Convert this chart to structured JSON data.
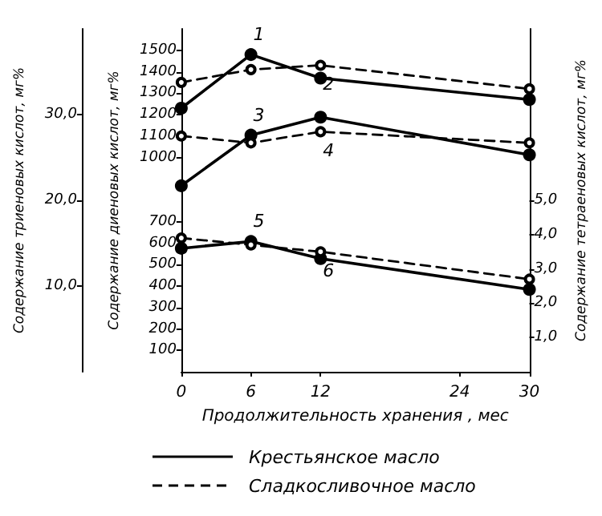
{
  "chart_data": {
    "type": "line",
    "xlabel": "Продолжительность хранения , мес",
    "ylabel": "Содержание диеновых кислот, мг%",
    "y2label": "Содержание триеновых кислот, мг%",
    "y3label": "Содержание тетраеновых кислот, мг%",
    "x": [
      0,
      6,
      12,
      30
    ],
    "xlim": [
      0,
      30
    ],
    "xticks": [
      0,
      6,
      12,
      24,
      30
    ],
    "ylim": [
      0,
      1600
    ],
    "yticks": [
      100,
      200,
      300,
      400,
      500,
      600,
      700,
      1000,
      1100,
      1200,
      1300,
      1400,
      1500
    ],
    "y2lim": [
      0,
      40
    ],
    "y2ticks": [
      {
        "value": 10,
        "label": "10,0"
      },
      {
        "value": 20,
        "label": "20,0"
      },
      {
        "value": 30,
        "label": "30,0"
      }
    ],
    "y3lim": [
      0,
      10
    ],
    "y3ticks": [
      {
        "value": 1,
        "label": "1,0"
      },
      {
        "value": 2,
        "label": "2,0"
      },
      {
        "value": 3,
        "label": "3,0"
      },
      {
        "value": 4,
        "label": "4,0"
      },
      {
        "value": 5,
        "label": "5,0"
      }
    ],
    "grid": false,
    "series": [
      {
        "name": "1",
        "color": "#000000",
        "line_style": "solid",
        "marker": "circle",
        "values": [
          1230,
          1480,
          1370,
          1270
        ]
      },
      {
        "name": "2",
        "color": "#000000",
        "line_style": "dashed",
        "marker": "circle",
        "values": [
          1350,
          1410,
          1430,
          1320
        ]
      },
      {
        "name": "3",
        "color": "#000000",
        "line_style": "solid",
        "marker": "circle",
        "axis": "y2",
        "values": [
          21.7,
          27.6,
          29.7,
          25.3
        ]
      },
      {
        "name": "4",
        "color": "#000000",
        "line_style": "dashed",
        "marker": "circle",
        "axis": "y2",
        "values": [
          27.5,
          26.7,
          28.0,
          26.7
        ]
      },
      {
        "name": "5",
        "color": "#000000",
        "line_style": "solid",
        "marker": "circle",
        "axis": "y3",
        "values": [
          3.6,
          3.8,
          3.3,
          2.4
        ]
      },
      {
        "name": "6",
        "color": "#000000",
        "line_style": "dashed",
        "marker": "circle",
        "axis": "y3",
        "values": [
          3.9,
          3.7,
          3.5,
          2.7
        ]
      }
    ],
    "annotations": [
      "Крестьянское масло",
      "Сладкосливочное масло"
    ]
  }
}
